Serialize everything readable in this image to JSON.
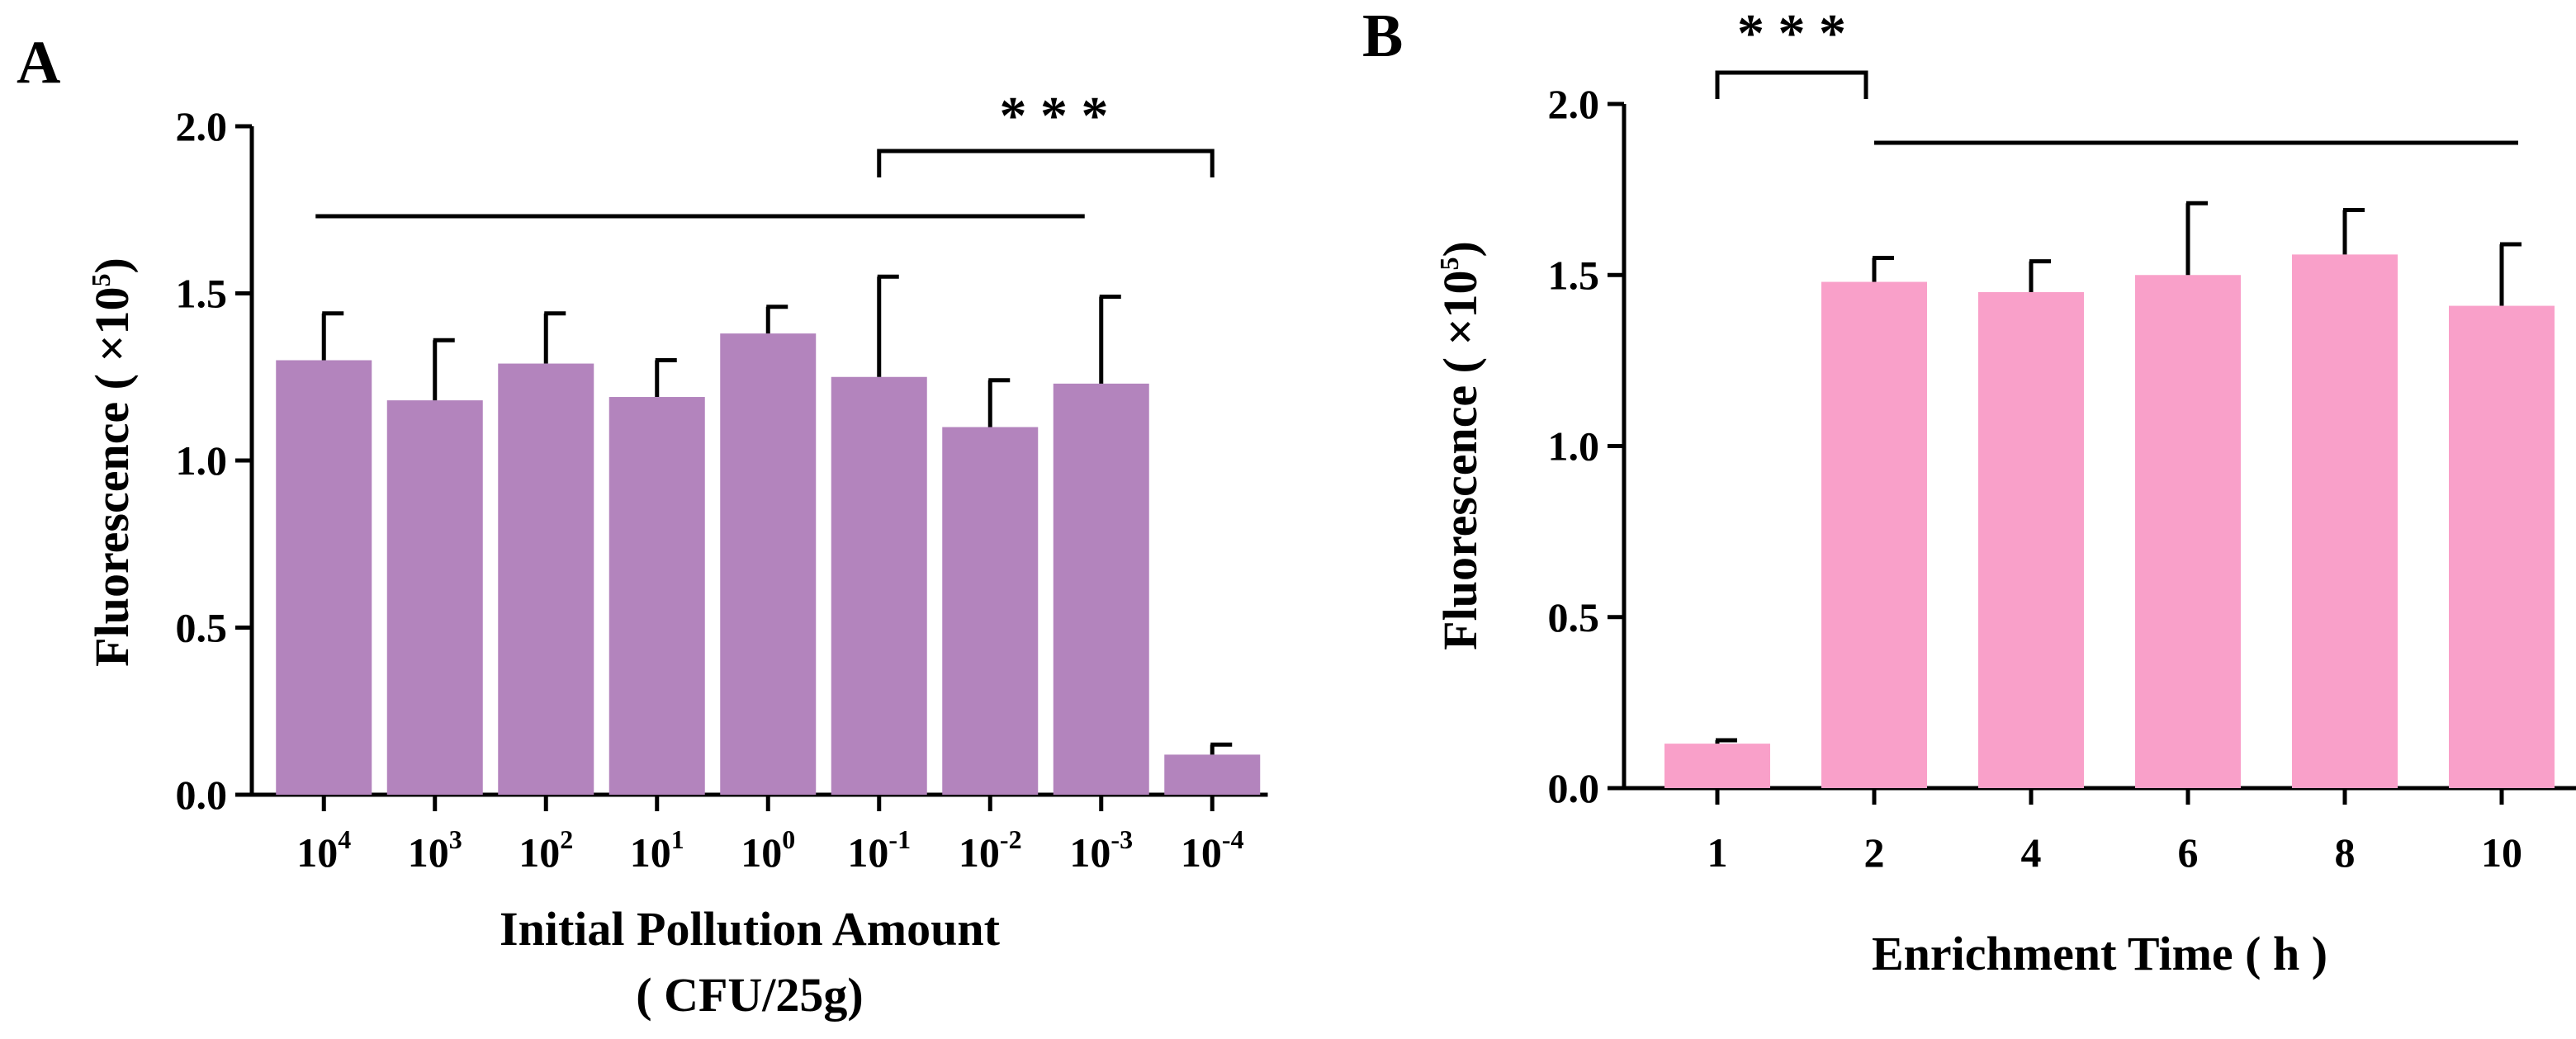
{
  "chart_data": [
    {
      "panel": "A",
      "type": "bar",
      "categories": [
        "10^4",
        "10^3",
        "10^2",
        "10^1",
        "10^0",
        "10^-1",
        "10^-2",
        "10^-3",
        "10^-4"
      ],
      "category_labels": [
        {
          "base": "10",
          "exp": "4"
        },
        {
          "base": "10",
          "exp": "3"
        },
        {
          "base": "10",
          "exp": "2"
        },
        {
          "base": "10",
          "exp": "1"
        },
        {
          "base": "10",
          "exp": "0"
        },
        {
          "base": "10",
          "exp": "-1"
        },
        {
          "base": "10",
          "exp": "-2"
        },
        {
          "base": "10",
          "exp": "-3"
        },
        {
          "base": "10",
          "exp": "-4"
        }
      ],
      "values": [
        1.3,
        1.18,
        1.29,
        1.19,
        1.38,
        1.25,
        1.1,
        1.23,
        0.12
      ],
      "errors": [
        0.14,
        0.18,
        0.15,
        0.11,
        0.08,
        0.3,
        0.14,
        0.26,
        0.03
      ],
      "bar_color": "#b384bd",
      "xlabel": "Initial Pollution Amount",
      "xlabel_line2": "( CFU/25g)",
      "ylabel": "Fluorescence ( ×10",
      "ylabel_exp": "5",
      "ylabel_close": ")",
      "ylim": [
        0,
        2.0
      ],
      "yticks": [
        "0.0",
        "0.5",
        "1.0",
        "1.5",
        "2.0"
      ],
      "significance": {
        "label": "* * *",
        "bracket_from": 5,
        "bracket_to": 8,
        "line_from": 0,
        "line_to": 7
      }
    },
    {
      "panel": "B",
      "type": "bar",
      "categories": [
        "1",
        "2",
        "4",
        "6",
        "8",
        "10"
      ],
      "values": [
        0.13,
        1.48,
        1.45,
        1.5,
        1.56,
        1.41
      ],
      "errors": [
        0.01,
        0.07,
        0.09,
        0.21,
        0.13,
        0.18
      ],
      "bar_color": "#f9a0c9",
      "xlabel": "Enrichment Time ( h )",
      "ylabel": "Fluorescence ( ×10",
      "ylabel_exp": "5",
      "ylabel_close": ")",
      "ylim": [
        0,
        2.0
      ],
      "yticks": [
        "0.0",
        "0.5",
        "1.0",
        "1.5",
        "2.0"
      ],
      "significance": {
        "label": "* * *",
        "bracket_from": 0,
        "bracket_to": 1,
        "line_from": 1,
        "line_to": 5
      }
    }
  ]
}
